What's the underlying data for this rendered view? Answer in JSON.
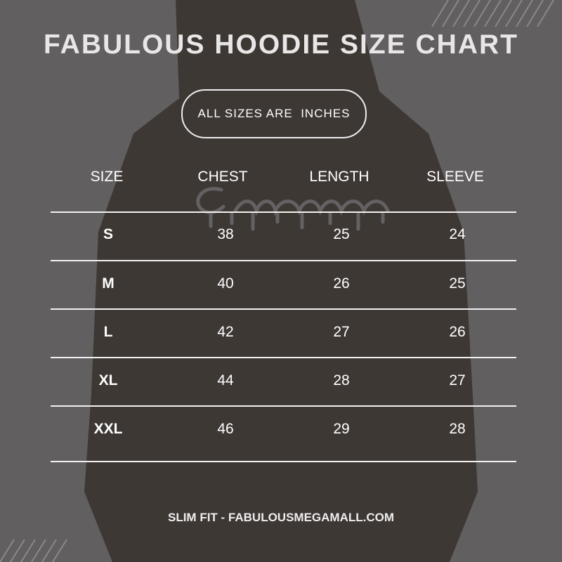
{
  "title": "FABULOUS HOODIE SIZE CHART",
  "unit_note": "ALL SIZES ARE  INCHES",
  "table": {
    "headers": [
      "SIZE",
      "CHEST",
      "LENGTH",
      "SLEEVE"
    ],
    "rows": [
      [
        "S",
        "38",
        "25",
        "24"
      ],
      [
        "M",
        "40",
        "26",
        "25"
      ],
      [
        "L",
        "42",
        "27",
        "26"
      ],
      [
        "XL",
        "44",
        "28",
        "27"
      ],
      [
        "XXL",
        "46",
        "29",
        "28"
      ]
    ]
  },
  "footer": "SLIM FIT - FABULOUSMEGAMALL.COM",
  "colors": {
    "background": "#615f5f",
    "text": "#ffffff",
    "figure": "#3b3431"
  }
}
